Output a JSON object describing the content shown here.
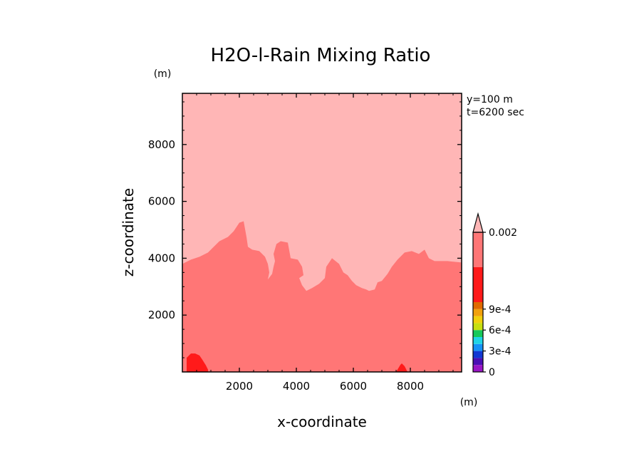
{
  "chart_data": {
    "type": "contour",
    "title": "H2O-l-Rain Mixing Ratio",
    "xlabel": "x-coordinate",
    "ylabel": "z-coordinate",
    "x_unit": "(m)",
    "y_unit": "(m)",
    "info": [
      "y=100 m",
      "t=6200 sec"
    ],
    "xlim": [
      0,
      9800
    ],
    "ylim": [
      0,
      9800
    ],
    "xticks": [
      2000,
      4000,
      6000,
      8000
    ],
    "yticks": [
      2000,
      4000,
      6000,
      8000
    ],
    "xtick_labels": [
      "2000",
      "4000",
      "6000",
      "8000"
    ],
    "ytick_labels": [
      "2000",
      "4000",
      "6000",
      "8000"
    ],
    "regions": [
      {
        "name": "upper-light-region",
        "color": "#ffb6b6",
        "points": [
          [
            0,
            0
          ],
          [
            9800,
            0
          ],
          [
            9800,
            9800
          ],
          [
            0,
            9800
          ]
        ]
      },
      {
        "name": "lower-mid-region",
        "color": "#ff7676",
        "points": [
          [
            0,
            3800
          ],
          [
            300,
            3950
          ],
          [
            600,
            4050
          ],
          [
            900,
            4200
          ],
          [
            1100,
            4400
          ],
          [
            1300,
            4600
          ],
          [
            1600,
            4750
          ],
          [
            1800,
            4950
          ],
          [
            2000,
            5250
          ],
          [
            2150,
            5300
          ],
          [
            2250,
            4750
          ],
          [
            2300,
            4400
          ],
          [
            2450,
            4300
          ],
          [
            2700,
            4250
          ],
          [
            2900,
            4050
          ],
          [
            3000,
            3800
          ],
          [
            3050,
            3500
          ],
          [
            3000,
            3250
          ],
          [
            3150,
            3450
          ],
          [
            3200,
            3700
          ],
          [
            3250,
            3900
          ],
          [
            3200,
            4150
          ],
          [
            3300,
            4500
          ],
          [
            3450,
            4600
          ],
          [
            3700,
            4550
          ],
          [
            3800,
            4000
          ],
          [
            4050,
            3950
          ],
          [
            4200,
            3700
          ],
          [
            4250,
            3400
          ],
          [
            4100,
            3300
          ],
          [
            4200,
            3050
          ],
          [
            4350,
            2850
          ],
          [
            4550,
            2950
          ],
          [
            4800,
            3100
          ],
          [
            5000,
            3300
          ],
          [
            5050,
            3700
          ],
          [
            5250,
            4000
          ],
          [
            5500,
            3800
          ],
          [
            5650,
            3500
          ],
          [
            5800,
            3400
          ],
          [
            5950,
            3200
          ],
          [
            6100,
            3050
          ],
          [
            6300,
            2950
          ],
          [
            6450,
            2900
          ],
          [
            6550,
            2850
          ],
          [
            6750,
            2900
          ],
          [
            6850,
            3150
          ],
          [
            7000,
            3200
          ],
          [
            7200,
            3450
          ],
          [
            7350,
            3700
          ],
          [
            7550,
            3950
          ],
          [
            7800,
            4200
          ],
          [
            8050,
            4250
          ],
          [
            8300,
            4150
          ],
          [
            8500,
            4300
          ],
          [
            8650,
            4000
          ],
          [
            8850,
            3900
          ],
          [
            9300,
            3900
          ],
          [
            9800,
            3850
          ],
          [
            9800,
            0
          ],
          [
            0,
            0
          ]
        ]
      },
      {
        "name": "red-blob-left",
        "color": "#ff1a1a",
        "points": [
          [
            150,
            0
          ],
          [
            150,
            500
          ],
          [
            300,
            650
          ],
          [
            450,
            650
          ],
          [
            600,
            580
          ],
          [
            700,
            430
          ],
          [
            820,
            240
          ],
          [
            900,
            80
          ],
          [
            900,
            0
          ]
        ]
      },
      {
        "name": "red-blob-right",
        "color": "#ff1a1a",
        "points": [
          [
            7500,
            0
          ],
          [
            7650,
            250
          ],
          [
            7700,
            300
          ],
          [
            7800,
            200
          ],
          [
            7900,
            0
          ]
        ]
      }
    ],
    "colorbar": {
      "min": 0,
      "max": 0.002,
      "extend": "max",
      "levels": [
        {
          "color": "#9a16c6"
        },
        {
          "color": "#4b0fb4"
        },
        {
          "color": "#1238d3"
        },
        {
          "color": "#1792f6"
        },
        {
          "color": "#21d4e6"
        },
        {
          "color": "#16c95a"
        },
        {
          "color": "#c7df10"
        },
        {
          "color": "#f1d00c"
        },
        {
          "color": "#f2a10c"
        },
        {
          "color": "#e06a00"
        },
        {
          "color": "#ff1a1a",
          "span": 5
        },
        {
          "color": "#ff7676",
          "span": 5
        }
      ],
      "extend_color": "#ffb6b6",
      "tick_labels": [
        {
          "label": "0",
          "slot": 0
        },
        {
          "label": "3e-4",
          "slot": 3
        },
        {
          "label": "6e-4",
          "slot": 6
        },
        {
          "label": "9e-4",
          "slot": 9
        },
        {
          "label": "0.002",
          "slot": 20
        }
      ]
    }
  }
}
